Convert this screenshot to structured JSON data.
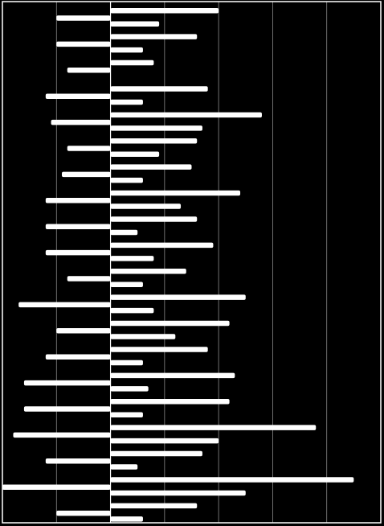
{
  "chart_data": {
    "type": "bar",
    "orientation": "horizontal",
    "title": "",
    "xlabel": "",
    "ylabel": "",
    "xlim": [
      -2,
      5
    ],
    "grid": true,
    "legend": "none",
    "colors": {
      "background": "#000000",
      "bars": "#ffffff",
      "grid": "#8a8a8a",
      "frame": "#ffffff"
    },
    "rows": [
      {
        "neg": -1.0,
        "pos": [
          2.0,
          0.9
        ]
      },
      {
        "neg": -1.0,
        "pos": [
          1.6,
          0.6
        ]
      },
      {
        "neg": -0.8,
        "pos": [
          0.8
        ]
      },
      {
        "neg": -1.2,
        "pos": [
          1.8,
          0.6
        ]
      },
      {
        "neg": -1.1,
        "pos": [
          2.8,
          1.7
        ]
      },
      {
        "neg": -0.8,
        "pos": [
          1.6,
          0.9
        ]
      },
      {
        "neg": -0.9,
        "pos": [
          1.5,
          0.6
        ]
      },
      {
        "neg": -1.2,
        "pos": [
          2.4,
          1.3
        ]
      },
      {
        "neg": -1.2,
        "pos": [
          1.6,
          0.5
        ]
      },
      {
        "neg": -1.2,
        "pos": [
          1.9,
          0.8
        ]
      },
      {
        "neg": -0.8,
        "pos": [
          1.4,
          0.6
        ]
      },
      {
        "neg": -1.7,
        "pos": [
          2.5,
          0.8
        ]
      },
      {
        "neg": -1.0,
        "pos": [
          2.2,
          1.2
        ]
      },
      {
        "neg": -1.2,
        "pos": [
          1.8,
          0.6
        ]
      },
      {
        "neg": -1.6,
        "pos": [
          2.3,
          0.7
        ]
      },
      {
        "neg": -1.6,
        "pos": [
          2.2,
          0.6
        ]
      },
      {
        "neg": -1.8,
        "pos": [
          3.8,
          2.0
        ]
      },
      {
        "neg": -1.2,
        "pos": [
          1.7,
          0.5
        ]
      },
      {
        "neg": -2.0,
        "pos": [
          4.5,
          2.5
        ]
      },
      {
        "neg": -1.0,
        "pos": [
          1.6,
          0.6
        ]
      }
    ]
  }
}
